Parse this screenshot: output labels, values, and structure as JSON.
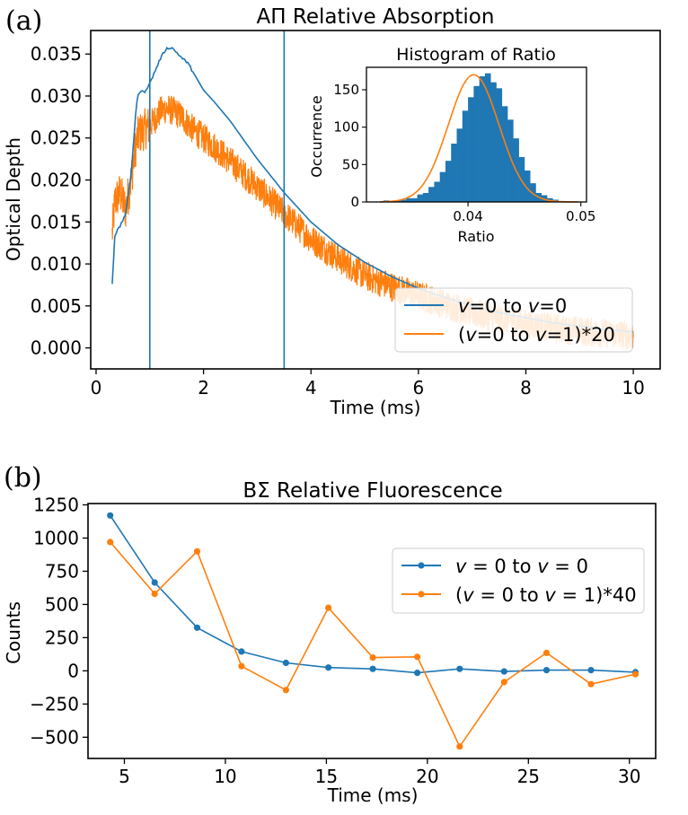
{
  "colors": {
    "blue": "#1f77b4",
    "orange": "#ff7f0e"
  },
  "panel_a": {
    "label": "(a)"
  },
  "panel_b": {
    "label": "(b)"
  },
  "chart_data": [
    {
      "id": "absorption",
      "type": "line",
      "title": "AΠ Relative Absorption",
      "xlabel": "Time (ms)",
      "ylabel": "Optical Depth",
      "xlim": [
        -0.1,
        10.5
      ],
      "ylim": [
        -0.0025,
        0.0378
      ],
      "xticks": [
        0,
        2,
        4,
        6,
        8,
        10
      ],
      "yticks": [
        0.0,
        0.005,
        0.01,
        0.015,
        0.02,
        0.025,
        0.03,
        0.035
      ],
      "ytick_labels": [
        "0.000",
        "0.005",
        "0.010",
        "0.015",
        "0.020",
        "0.025",
        "0.030",
        "0.035"
      ],
      "vlines": [
        1.0,
        3.5
      ],
      "legend": {
        "location": "lower-right",
        "entries": [
          "v=0 to v=0",
          "(v=0 to v=1)*20"
        ]
      },
      "series": [
        {
          "name": "v=0 to v=0",
          "x": [
            0.3,
            0.35,
            0.45,
            0.55,
            0.65,
            0.75,
            0.8,
            0.9,
            1.0,
            1.1,
            1.2,
            1.3,
            1.4,
            1.5,
            1.6,
            1.7,
            1.8,
            2.0,
            2.2,
            2.5,
            3.0,
            3.5,
            4.0,
            4.5,
            5.0,
            5.5,
            6.0,
            6.5,
            7.0,
            7.5,
            8.0,
            8.5,
            9.0,
            9.5,
            10.0
          ],
          "y": [
            0.0077,
            0.0135,
            0.0145,
            0.016,
            0.0205,
            0.029,
            0.0305,
            0.0305,
            0.0315,
            0.033,
            0.0345,
            0.0356,
            0.0358,
            0.0352,
            0.0345,
            0.034,
            0.0329,
            0.0307,
            0.0293,
            0.027,
            0.0225,
            0.0185,
            0.015,
            0.0123,
            0.0102,
            0.0085,
            0.0071,
            0.006,
            0.005,
            0.0042,
            0.0036,
            0.003,
            0.0026,
            0.0022,
            0.0019
          ]
        },
        {
          "name": "(v=0 to v=1)*20",
          "x": [
            0.3,
            0.35,
            0.45,
            0.55,
            0.65,
            0.75,
            0.8,
            0.9,
            1.0,
            1.1,
            1.2,
            1.3,
            1.4,
            1.5,
            1.6,
            1.7,
            1.8,
            2.0,
            2.2,
            2.5,
            3.0,
            3.5,
            4.0,
            4.5,
            5.0,
            5.5,
            6.0,
            6.5,
            7.0,
            7.5,
            8.0,
            8.5,
            9.0,
            9.5,
            10.0
          ],
          "y": [
            0.0135,
            0.0175,
            0.0185,
            0.0165,
            0.02,
            0.0245,
            0.0255,
            0.026,
            0.0265,
            0.0273,
            0.0282,
            0.0285,
            0.0283,
            0.028,
            0.0275,
            0.0268,
            0.026,
            0.025,
            0.024,
            0.0222,
            0.0192,
            0.016,
            0.013,
            0.0107,
            0.0086,
            0.0073,
            0.0062,
            0.0052,
            0.0042,
            0.0035,
            0.0029,
            0.0024,
            0.002,
            0.0017,
            0.0015
          ],
          "noise_amplitude": 0.0018
        }
      ]
    },
    {
      "id": "histogram-inset",
      "type": "bar",
      "title": "Histogram of Ratio",
      "xlabel": "Ratio",
      "ylabel": "Occurrence",
      "xlim": [
        0.031,
        0.0505
      ],
      "ylim": [
        0,
        180
      ],
      "xticks": [
        0.04,
        0.05
      ],
      "xtick_labels": [
        "0.04",
        "0.05"
      ],
      "yticks": [
        0,
        50,
        100,
        150
      ],
      "bin_start": 0.0325,
      "bin_width": 0.0005,
      "counts": [
        2,
        1,
        2,
        3,
        5,
        5,
        10,
        12,
        20,
        27,
        40,
        55,
        78,
        98,
        122,
        140,
        155,
        168,
        172,
        160,
        152,
        128,
        110,
        85,
        60,
        42,
        25,
        12,
        9,
        5,
        3
      ],
      "fit": {
        "mean": 0.0405,
        "sigma": 0.00225,
        "amplitude": 170
      }
    },
    {
      "id": "fluorescence",
      "type": "line",
      "title": "BΣ Relative Fluorescence",
      "xlabel": "Time (ms)",
      "ylabel": "Counts",
      "xlim": [
        3.2,
        31.3
      ],
      "ylim": [
        -660,
        1260
      ],
      "xticks": [
        5,
        10,
        15,
        20,
        25,
        30
      ],
      "yticks": [
        -500,
        -250,
        0,
        250,
        500,
        750,
        1000,
        1250
      ],
      "ytick_labels": [
        "−500",
        "−250",
        "0",
        "250",
        "500",
        "750",
        "1000",
        "1250"
      ],
      "legend": {
        "location": "upper-right",
        "entries": [
          "v = 0 to v = 0",
          "(v = 0 to v = 1)*40"
        ]
      },
      "series": [
        {
          "name": "v = 0 to v = 0",
          "x": [
            4.3,
            6.5,
            8.6,
            10.8,
            13.0,
            15.1,
            17.3,
            19.5,
            21.6,
            23.8,
            25.9,
            28.1,
            30.3
          ],
          "y": [
            1170,
            665,
            325,
            145,
            60,
            25,
            15,
            -15,
            15,
            -5,
            5,
            5,
            -10
          ]
        },
        {
          "name": "(v = 0 to v = 1)*40",
          "x": [
            4.3,
            6.5,
            8.6,
            10.8,
            13.0,
            15.1,
            17.3,
            19.5,
            21.6,
            23.8,
            25.9,
            28.1,
            30.3
          ],
          "y": [
            970,
            580,
            900,
            35,
            -145,
            475,
            100,
            105,
            -570,
            -85,
            135,
            -100,
            -25
          ]
        }
      ]
    }
  ]
}
